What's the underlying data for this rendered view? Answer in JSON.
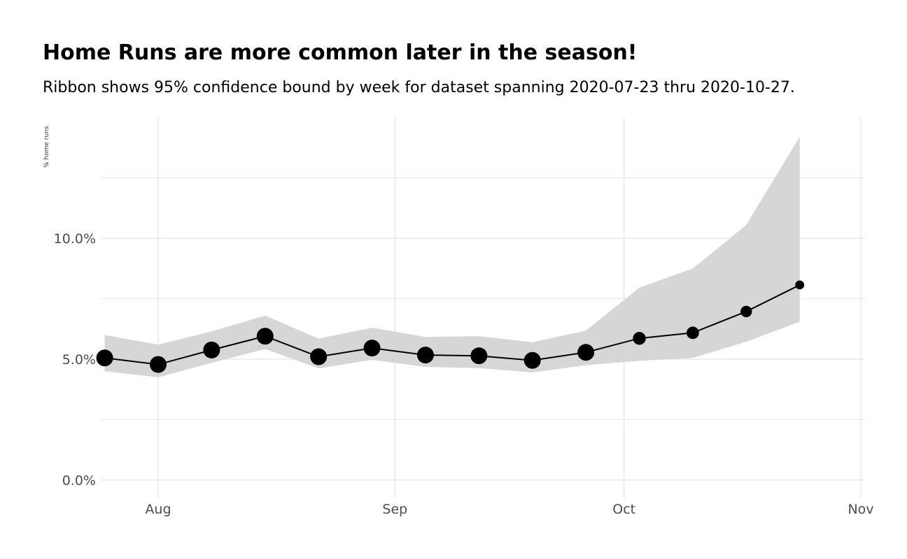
{
  "chart_data": {
    "type": "line",
    "title": "Home Runs are more common later in the season!",
    "subtitle": "Ribbon shows 95% confidence bound by week for dataset spanning 2020-07-23 thru 2020-10-27.",
    "xlabel": "",
    "ylabel": "% home runs",
    "x_ticks": [
      {
        "date": "2020-08-01",
        "label": "Aug"
      },
      {
        "date": "2020-09-01",
        "label": "Sep"
      },
      {
        "date": "2020-10-01",
        "label": "Oct"
      },
      {
        "date": "2020-11-01",
        "label": "Nov"
      }
    ],
    "y_ticks": [
      {
        "value": 0.0,
        "label": "0.0%"
      },
      {
        "value": 5.0,
        "label": "5.0%"
      },
      {
        "value": 10.0,
        "label": "10.0%"
      }
    ],
    "xlim": [
      "2020-07-21",
      "2020-11-01"
    ],
    "ylim": [
      -0.75,
      14.9
    ],
    "grid": true,
    "series": [
      {
        "x": [
          "2020-07-25",
          "2020-08-01",
          "2020-08-08",
          "2020-08-15",
          "2020-08-22",
          "2020-08-29",
          "2020-09-05",
          "2020-09-12",
          "2020-09-19",
          "2020-09-26",
          "2020-10-03",
          "2020-10-10",
          "2020-10-17",
          "2020-10-24"
        ],
        "y": [
          5.05,
          4.78,
          5.38,
          5.95,
          5.1,
          5.46,
          5.17,
          5.14,
          4.95,
          5.28,
          5.86,
          6.09,
          6.97,
          8.07
        ],
        "lower": [
          4.5,
          4.25,
          4.85,
          5.42,
          4.62,
          4.97,
          4.68,
          4.63,
          4.45,
          4.75,
          4.93,
          5.05,
          5.72,
          6.55
        ],
        "upper": [
          6.0,
          5.6,
          6.15,
          6.8,
          5.85,
          6.3,
          5.92,
          5.95,
          5.7,
          6.18,
          7.96,
          8.75,
          10.55,
          14.2
        ],
        "n": [
          1,
          1,
          1,
          1,
          1,
          1,
          1,
          1,
          1,
          1,
          0.45,
          0.4,
          0.3,
          0.12
        ]
      }
    ],
    "colors": {
      "ribbon": "#d6d6d6",
      "line": "#000000",
      "point": "#000000",
      "grid_major": "#dcdcdc",
      "grid_minor": "#e9e9e9"
    }
  }
}
